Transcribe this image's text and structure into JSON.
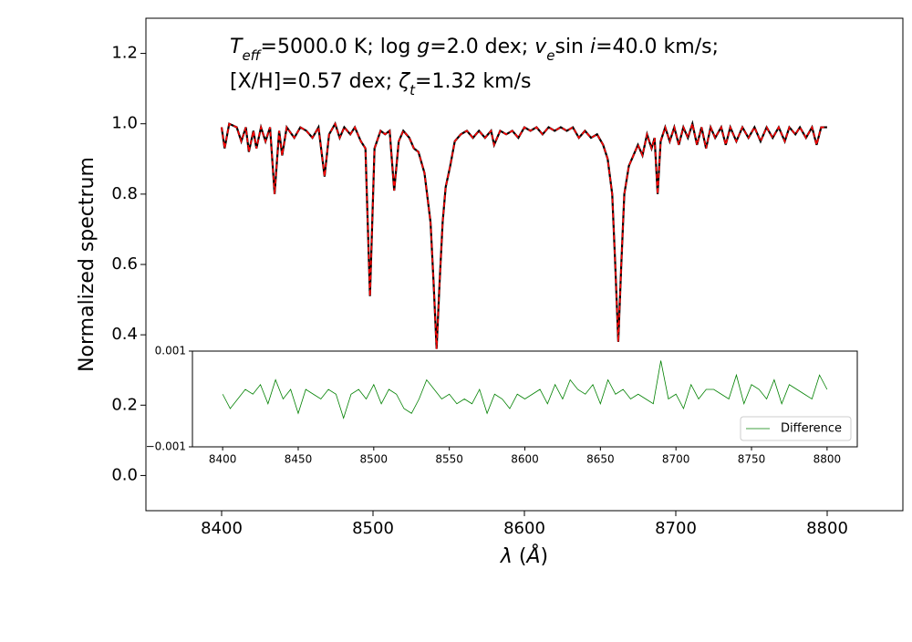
{
  "chart_data": [
    {
      "type": "line",
      "annotation": [
        [
          {
            "text": "T",
            "style": "italic"
          },
          {
            "text": "eff",
            "style": "sub"
          },
          {
            "text": "=5000.0 K; log ",
            "style": "normal"
          },
          {
            "text": "g",
            "style": "italic"
          },
          {
            "text": "=2.0 dex; ",
            "style": "normal"
          },
          {
            "text": "v",
            "style": "italic"
          },
          {
            "text": "e",
            "style": "sub"
          },
          {
            "text": "sin ",
            "style": "normal"
          },
          {
            "text": "i",
            "style": "italic"
          },
          {
            "text": "=40.0 km/s;",
            "style": "normal"
          }
        ],
        [
          {
            "text": "[X/H]=0.57 dex; ",
            "style": "normal"
          },
          {
            "text": "ζ",
            "style": "italic"
          },
          {
            "text": "t",
            "style": "sub"
          },
          {
            "text": "=1.32 km/s",
            "style": "normal"
          }
        ]
      ],
      "x_label": [
        {
          "text": "λ",
          "style": "italic"
        },
        {
          "text": " (",
          "style": "normal"
        },
        {
          "text": "Å",
          "style": "italic"
        },
        {
          "text": ")",
          "style": "normal"
        }
      ],
      "y_label": "Normalized spectrum",
      "xlim": [
        8350,
        8850
      ],
      "xticks": [
        8400,
        8500,
        8600,
        8700,
        8800
      ],
      "ylim": [
        -0.1,
        1.3
      ],
      "yticks": [
        {
          "value": 0,
          "label": "0.0"
        },
        {
          "value": 0.2,
          "label": "0.2"
        },
        {
          "value": 0.4,
          "label": "0.4"
        },
        {
          "value": 0.6,
          "label": "0.6"
        },
        {
          "value": 0.8,
          "label": "0.8"
        },
        {
          "value": 1,
          "label": "1.0"
        },
        {
          "value": 1.2,
          "label": "1.2"
        }
      ],
      "x": [
        8400,
        8402,
        8405,
        8410,
        8413,
        8416,
        8418,
        8421,
        8423,
        8426,
        8429,
        8432,
        8435,
        8438,
        8440,
        8443,
        8448,
        8452,
        8456,
        8460,
        8464,
        8468,
        8471,
        8475,
        8478,
        8481,
        8485,
        8488,
        8492,
        8495,
        8498,
        8501,
        8505,
        8508,
        8511,
        8514,
        8517,
        8520,
        8524,
        8527,
        8530,
        8534,
        8538,
        8540,
        8542,
        8544,
        8546,
        8548,
        8551,
        8554,
        8558,
        8562,
        8566,
        8570,
        8574,
        8578,
        8580,
        8584,
        8588,
        8592,
        8596,
        8600,
        8604,
        8608,
        8612,
        8616,
        8620,
        8624,
        8628,
        8632,
        8636,
        8640,
        8644,
        8648,
        8652,
        8655,
        8658,
        8660,
        8662,
        8664,
        8666,
        8669,
        8672,
        8675,
        8678,
        8681,
        8684,
        8686,
        8688,
        8690,
        8693,
        8696,
        8699,
        8702,
        8705,
        8708,
        8711,
        8714,
        8717,
        8720,
        8723,
        8726,
        8730,
        8733,
        8736,
        8740,
        8744,
        8748,
        8752,
        8756,
        8760,
        8764,
        8768,
        8772,
        8775,
        8779,
        8782,
        8786,
        8790,
        8793,
        8796,
        8800
      ],
      "series": [
        {
          "color": "#000000",
          "dashed": false,
          "values": [
            0.99,
            0.93,
            1.0,
            0.99,
            0.95,
            0.99,
            0.92,
            0.98,
            0.93,
            0.99,
            0.95,
            0.99,
            0.8,
            0.98,
            0.91,
            0.99,
            0.96,
            0.99,
            0.98,
            0.96,
            0.99,
            0.85,
            0.97,
            1.0,
            0.96,
            0.99,
            0.97,
            0.99,
            0.95,
            0.93,
            0.51,
            0.93,
            0.98,
            0.97,
            0.98,
            0.81,
            0.95,
            0.98,
            0.96,
            0.93,
            0.92,
            0.86,
            0.72,
            0.55,
            0.36,
            0.55,
            0.72,
            0.82,
            0.88,
            0.95,
            0.97,
            0.98,
            0.96,
            0.98,
            0.96,
            0.98,
            0.94,
            0.98,
            0.97,
            0.98,
            0.96,
            0.99,
            0.98,
            0.99,
            0.97,
            0.99,
            0.98,
            0.99,
            0.98,
            0.99,
            0.96,
            0.98,
            0.96,
            0.97,
            0.94,
            0.9,
            0.8,
            0.6,
            0.38,
            0.6,
            0.8,
            0.88,
            0.91,
            0.94,
            0.91,
            0.97,
            0.93,
            0.96,
            0.8,
            0.95,
            0.99,
            0.95,
            0.99,
            0.94,
            0.99,
            0.96,
            1.0,
            0.94,
            0.99,
            0.93,
            0.99,
            0.96,
            0.99,
            0.94,
            0.99,
            0.95,
            0.99,
            0.96,
            0.99,
            0.95,
            0.99,
            0.96,
            0.99,
            0.95,
            0.99,
            0.97,
            0.99,
            0.96,
            0.99,
            0.94,
            0.99,
            0.99
          ]
        },
        {
          "color": "#ff0000",
          "dashed": true,
          "values": [
            0.99,
            0.93,
            1.0,
            0.99,
            0.95,
            0.99,
            0.92,
            0.98,
            0.93,
            0.99,
            0.95,
            0.99,
            0.8,
            0.98,
            0.91,
            0.99,
            0.96,
            0.99,
            0.98,
            0.96,
            0.99,
            0.85,
            0.97,
            1.0,
            0.96,
            0.99,
            0.97,
            0.99,
            0.95,
            0.93,
            0.51,
            0.93,
            0.98,
            0.97,
            0.98,
            0.81,
            0.95,
            0.98,
            0.96,
            0.93,
            0.92,
            0.86,
            0.72,
            0.55,
            0.36,
            0.55,
            0.72,
            0.82,
            0.88,
            0.95,
            0.97,
            0.98,
            0.96,
            0.98,
            0.96,
            0.98,
            0.94,
            0.98,
            0.97,
            0.98,
            0.96,
            0.99,
            0.98,
            0.99,
            0.97,
            0.99,
            0.98,
            0.99,
            0.98,
            0.99,
            0.96,
            0.98,
            0.96,
            0.97,
            0.94,
            0.9,
            0.8,
            0.6,
            0.38,
            0.6,
            0.8,
            0.88,
            0.91,
            0.94,
            0.91,
            0.97,
            0.93,
            0.96,
            0.8,
            0.95,
            0.99,
            0.95,
            0.99,
            0.94,
            0.99,
            0.96,
            1.0,
            0.94,
            0.99,
            0.93,
            0.99,
            0.96,
            0.99,
            0.94,
            0.99,
            0.95,
            0.99,
            0.96,
            0.99,
            0.95,
            0.99,
            0.96,
            0.99,
            0.95,
            0.99,
            0.97,
            0.99,
            0.96,
            0.99,
            0.94,
            0.99,
            0.99
          ]
        }
      ]
    },
    {
      "type": "line",
      "xlim": [
        8380,
        8820
      ],
      "xticks": [
        8400,
        8450,
        8500,
        8550,
        8600,
        8650,
        8700,
        8750,
        8800
      ],
      "ylim": [
        -0.001,
        0.001
      ],
      "yticks": [
        {
          "value": -0.001,
          "label": "−0.001"
        },
        0.001
      ],
      "legend": "lower right",
      "x": [
        8400,
        8405,
        8410,
        8415,
        8420,
        8425,
        8430,
        8435,
        8440,
        8445,
        8450,
        8455,
        8460,
        8465,
        8470,
        8475,
        8480,
        8485,
        8490,
        8495,
        8500,
        8505,
        8510,
        8515,
        8520,
        8525,
        8530,
        8535,
        8540,
        8545,
        8550,
        8555,
        8560,
        8565,
        8570,
        8575,
        8580,
        8585,
        8590,
        8595,
        8600,
        8605,
        8610,
        8615,
        8620,
        8625,
        8630,
        8635,
        8640,
        8645,
        8650,
        8655,
        8660,
        8665,
        8670,
        8675,
        8680,
        8685,
        8690,
        8695,
        8700,
        8705,
        8710,
        8715,
        8720,
        8725,
        8730,
        8735,
        8740,
        8745,
        8750,
        8755,
        8760,
        8765,
        8770,
        8775,
        8780,
        8785,
        8790,
        8795,
        8800
      ],
      "series": [
        {
          "name": "Difference",
          "color": "#008000",
          "dashed": false,
          "values": [
            0.0001,
            -0.0002,
            0.0,
            0.0002,
            0.0001,
            0.0003,
            -0.0001,
            0.0004,
            0.0,
            0.0002,
            -0.0003,
            0.0002,
            0.0001,
            0.0,
            0.0002,
            0.0001,
            -0.0004,
            0.0001,
            0.0002,
            0.0,
            0.0003,
            -0.0001,
            0.0002,
            0.0001,
            -0.0002,
            -0.0003,
            0.0,
            0.0004,
            0.0002,
            0.0,
            0.0001,
            -0.0001,
            0.0,
            -0.0001,
            0.0002,
            -0.0003,
            0.0001,
            0.0,
            -0.0002,
            0.0001,
            0.0,
            0.0001,
            0.0002,
            -0.0001,
            0.0003,
            0.0,
            0.0004,
            0.0002,
            0.0001,
            0.0003,
            -0.0001,
            0.0004,
            0.0001,
            0.0002,
            0.0,
            0.0001,
            0.0,
            -0.0001,
            0.0008,
            0.0,
            0.0001,
            -0.0002,
            0.0003,
            0.0,
            0.0002,
            0.0002,
            0.0001,
            0.0,
            0.0005,
            -0.0001,
            0.0003,
            0.0002,
            0.0,
            0.0004,
            -0.0001,
            0.0003,
            0.0002,
            0.0001,
            0.0,
            0.0005,
            0.0002
          ]
        }
      ]
    }
  ]
}
